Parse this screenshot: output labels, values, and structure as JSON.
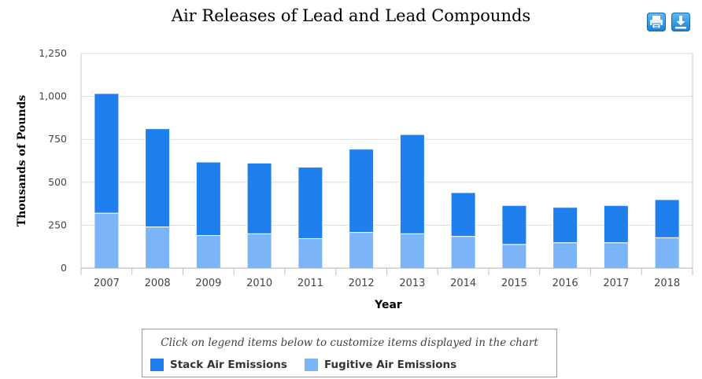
{
  "title": "Air Releases of Lead and Lead Compounds",
  "toolbar": {
    "print_icon": "printer-icon",
    "download_icon": "download-icon"
  },
  "legend": {
    "note": "Click on legend items below to customize items displayed in the chart",
    "items": [
      {
        "label": "Stack Air Emissions",
        "color": "#1f7fec"
      },
      {
        "label": "Fugitive Air Emissions",
        "color": "#7cb5f7"
      }
    ]
  },
  "chart_data": {
    "type": "bar",
    "stacked": true,
    "title": "Air Releases of Lead and Lead Compounds",
    "xlabel": "Year",
    "ylabel": "Thousands of Pounds",
    "ylim": [
      0,
      1250
    ],
    "yticks": [
      0,
      250,
      500,
      750,
      1000,
      1250
    ],
    "ytick_labels": [
      "0",
      "250",
      "500",
      "750",
      "1,000",
      "1,250"
    ],
    "categories": [
      "2007",
      "2008",
      "2009",
      "2010",
      "2011",
      "2012",
      "2013",
      "2014",
      "2015",
      "2016",
      "2017",
      "2018"
    ],
    "series": [
      {
        "name": "Fugitive Air Emissions",
        "color": "#7cb5f7",
        "values": [
          320,
          240,
          190,
          200,
          172,
          208,
          200,
          185,
          138,
          148,
          148,
          177
        ]
      },
      {
        "name": "Stack Air Emissions",
        "color": "#1f7fec",
        "values": [
          697,
          572,
          428,
          412,
          416,
          485,
          578,
          255,
          227,
          206,
          217,
          222
        ]
      }
    ],
    "grid": true,
    "legend_position": "bottom"
  }
}
